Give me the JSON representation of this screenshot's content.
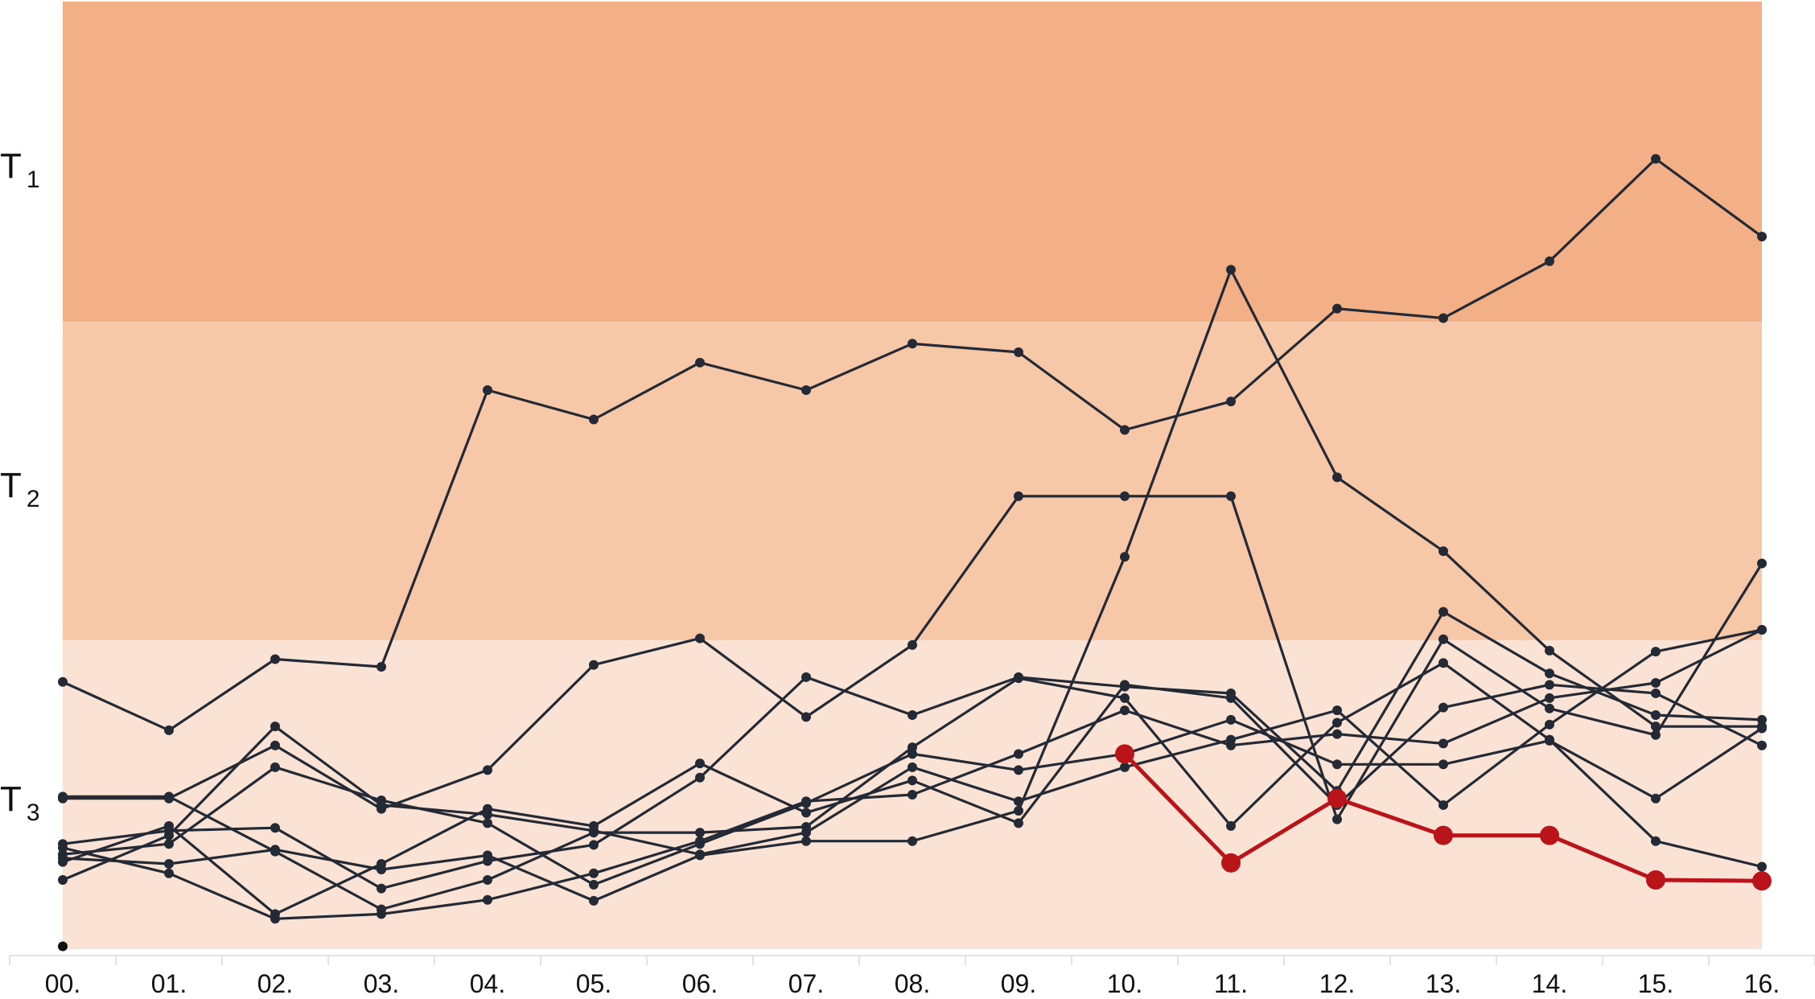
{
  "chart_data": {
    "type": "line",
    "title": "",
    "xlabel": "",
    "ylabel": "",
    "categories": [
      "00.",
      "01.",
      "02.",
      "03.",
      "04.",
      "05.",
      "06.",
      "07.",
      "08.",
      "09.",
      "10.",
      "11.",
      "12.",
      "13.",
      "14.",
      "15.",
      "16."
    ],
    "ylim": [
      0,
      100
    ],
    "grid": false,
    "legend": "none",
    "bands": [
      {
        "main": "T",
        "sub": "1",
        "from": 66.2,
        "to": 100,
        "color": "#f3b086"
      },
      {
        "main": "T",
        "sub": "2",
        "from": 32.6,
        "to": 66.2,
        "color": "#f6c8a8"
      },
      {
        "main": "T",
        "sub": "3",
        "from": 0,
        "to": 32.6,
        "color": "#fae3d5"
      }
    ],
    "extra_points": [
      {
        "x": "00.",
        "y": 0.3
      }
    ],
    "series": [
      {
        "values": [
          28.2,
          23.1,
          30.6,
          29.8,
          59.0,
          55.9,
          61.9,
          59.0,
          63.9,
          63.0,
          54.8,
          57.8,
          67.6,
          66.6,
          72.6,
          83.4,
          75.2
        ],
        "color": "#242a35"
      },
      {
        "values": [
          15.9,
          15.9,
          21.5,
          14.8,
          18.9,
          30.0,
          32.8,
          24.5,
          32.1,
          47.8,
          47.8,
          47.8,
          13.7,
          32.7,
          25.4,
          22.6,
          40.7
        ],
        "color": "#242a35"
      },
      {
        "values": [
          9.6,
          9.0,
          10.5,
          8.4,
          9.9,
          5.1,
          9.9,
          11.4,
          11.4,
          14.6,
          41.4,
          71.7,
          49.8,
          42.0,
          31.5,
          23.5,
          23.5
        ],
        "color": "#242a35"
      },
      {
        "values": [
          7.3,
          12.0,
          23.5,
          15.2,
          14.2,
          12.5,
          10.0,
          12.3,
          19.2,
          15.6,
          19.2,
          22.1,
          25.2,
          15.2,
          23.7,
          31.4,
          33.7
        ],
        "color": "#242a35"
      },
      {
        "values": [
          9.2,
          13.0,
          3.7,
          9.0,
          14.8,
          13.0,
          19.6,
          14.4,
          17.8,
          13.3,
          27.9,
          26.5,
          15.2,
          25.5,
          27.9,
          27.0,
          21.5
        ],
        "color": "#242a35"
      },
      {
        "values": [
          10.0,
          11.1,
          19.2,
          15.7,
          13.3,
          6.8,
          11.1,
          15.4,
          20.6,
          18.9,
          20.6,
          24.2,
          19.5,
          19.5,
          22.0,
          15.9,
          23.3
        ],
        "color": "#242a35"
      },
      {
        "values": [
          11.1,
          12.5,
          12.8,
          6.4,
          9.3,
          11.0,
          18.1,
          28.7,
          24.7,
          28.7,
          27.7,
          27.0,
          16.7,
          35.6,
          29.1,
          24.7,
          24.2
        ],
        "color": "#242a35"
      },
      {
        "values": [
          10.7,
          8.0,
          3.2,
          3.7,
          5.2,
          8.0,
          11.4,
          15.6,
          16.3,
          20.6,
          25.2,
          21.5,
          22.7,
          21.7,
          26.5,
          28.1,
          33.7
        ],
        "color": "#242a35"
      },
      {
        "values": [
          16.1,
          16.1,
          10.3,
          4.2,
          7.3,
          12.3,
          12.3,
          12.9,
          21.3,
          28.6,
          26.5,
          13.0,
          23.9,
          30.2,
          22.1,
          11.4,
          8.7
        ],
        "color": "#242a35"
      },
      {
        "values": [
          null,
          null,
          null,
          null,
          null,
          null,
          null,
          null,
          null,
          null,
          20.6,
          9.1,
          15.9,
          12.0,
          12.0,
          7.3,
          7.2
        ],
        "color": "#b8141a"
      }
    ]
  }
}
